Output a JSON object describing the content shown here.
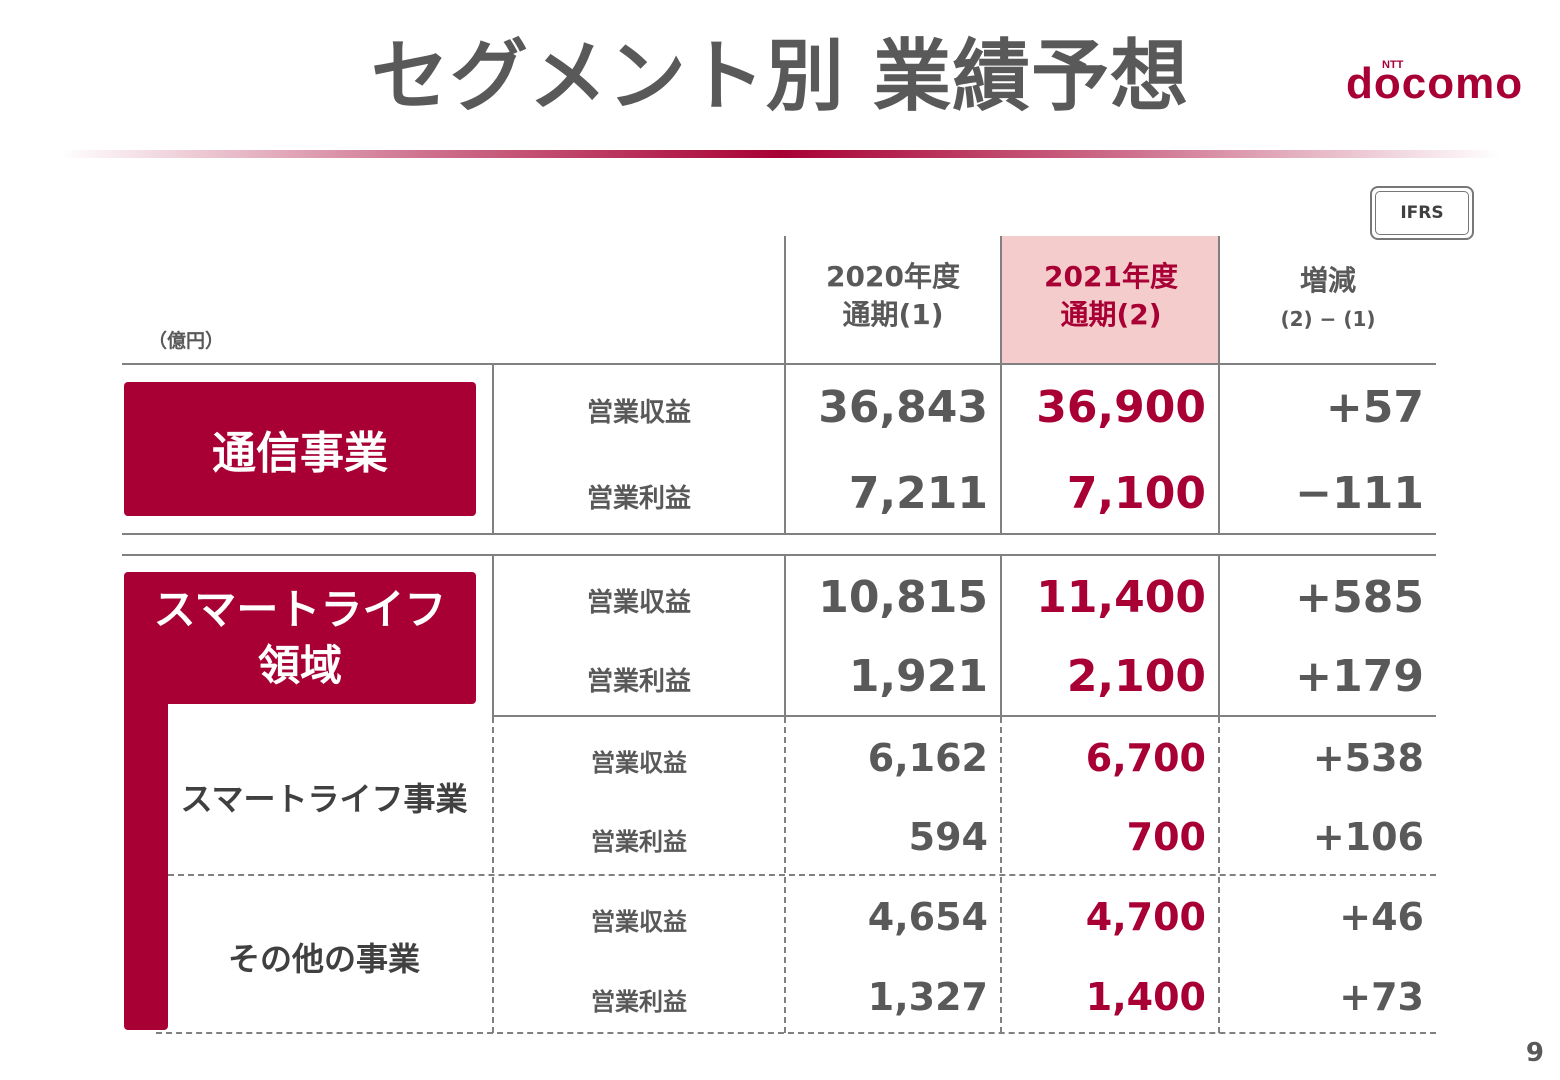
{
  "title": "セグメント別 業績予想",
  "logo": {
    "brand": "docomo",
    "prefix": "NTT"
  },
  "badge": "IFRS",
  "unit": "（億円）",
  "colors": {
    "accent": "#a80034",
    "highlight": "#f4cccc",
    "text": "#595959"
  },
  "headers": {
    "prev": {
      "line1": "2020年度",
      "line2": "通期(1)"
    },
    "cur": {
      "line1": "2021年度",
      "line2": "通期(2)"
    },
    "diff": {
      "line1": "増減",
      "line2": "(2) − (1)"
    }
  },
  "segments": {
    "telecom": {
      "name": "通信事業",
      "rows": [
        {
          "metric": "営業収益",
          "prev": "36,843",
          "cur": "36,900",
          "diff": "+57"
        },
        {
          "metric": "営業利益",
          "prev": "7,211",
          "cur": "7,100",
          "diff": "−111"
        }
      ]
    },
    "smartlife": {
      "name_line1": "スマートライフ",
      "name_line2": "領域",
      "rows": [
        {
          "metric": "営業収益",
          "prev": "10,815",
          "cur": "11,400",
          "diff": "+585"
        },
        {
          "metric": "営業利益",
          "prev": "1,921",
          "cur": "2,100",
          "diff": "+179"
        }
      ]
    },
    "smartlife_business": {
      "name": "スマートライフ事業",
      "rows": [
        {
          "metric": "営業収益",
          "prev": "6,162",
          "cur": "6,700",
          "diff": "+538"
        },
        {
          "metric": "営業利益",
          "prev": "594",
          "cur": "700",
          "diff": "+106"
        }
      ]
    },
    "other_business": {
      "name": "その他の事業",
      "rows": [
        {
          "metric": "営業収益",
          "prev": "4,654",
          "cur": "4,700",
          "diff": "+46"
        },
        {
          "metric": "営業利益",
          "prev": "1,327",
          "cur": "1,400",
          "diff": "+73"
        }
      ]
    }
  },
  "page_number": "9"
}
